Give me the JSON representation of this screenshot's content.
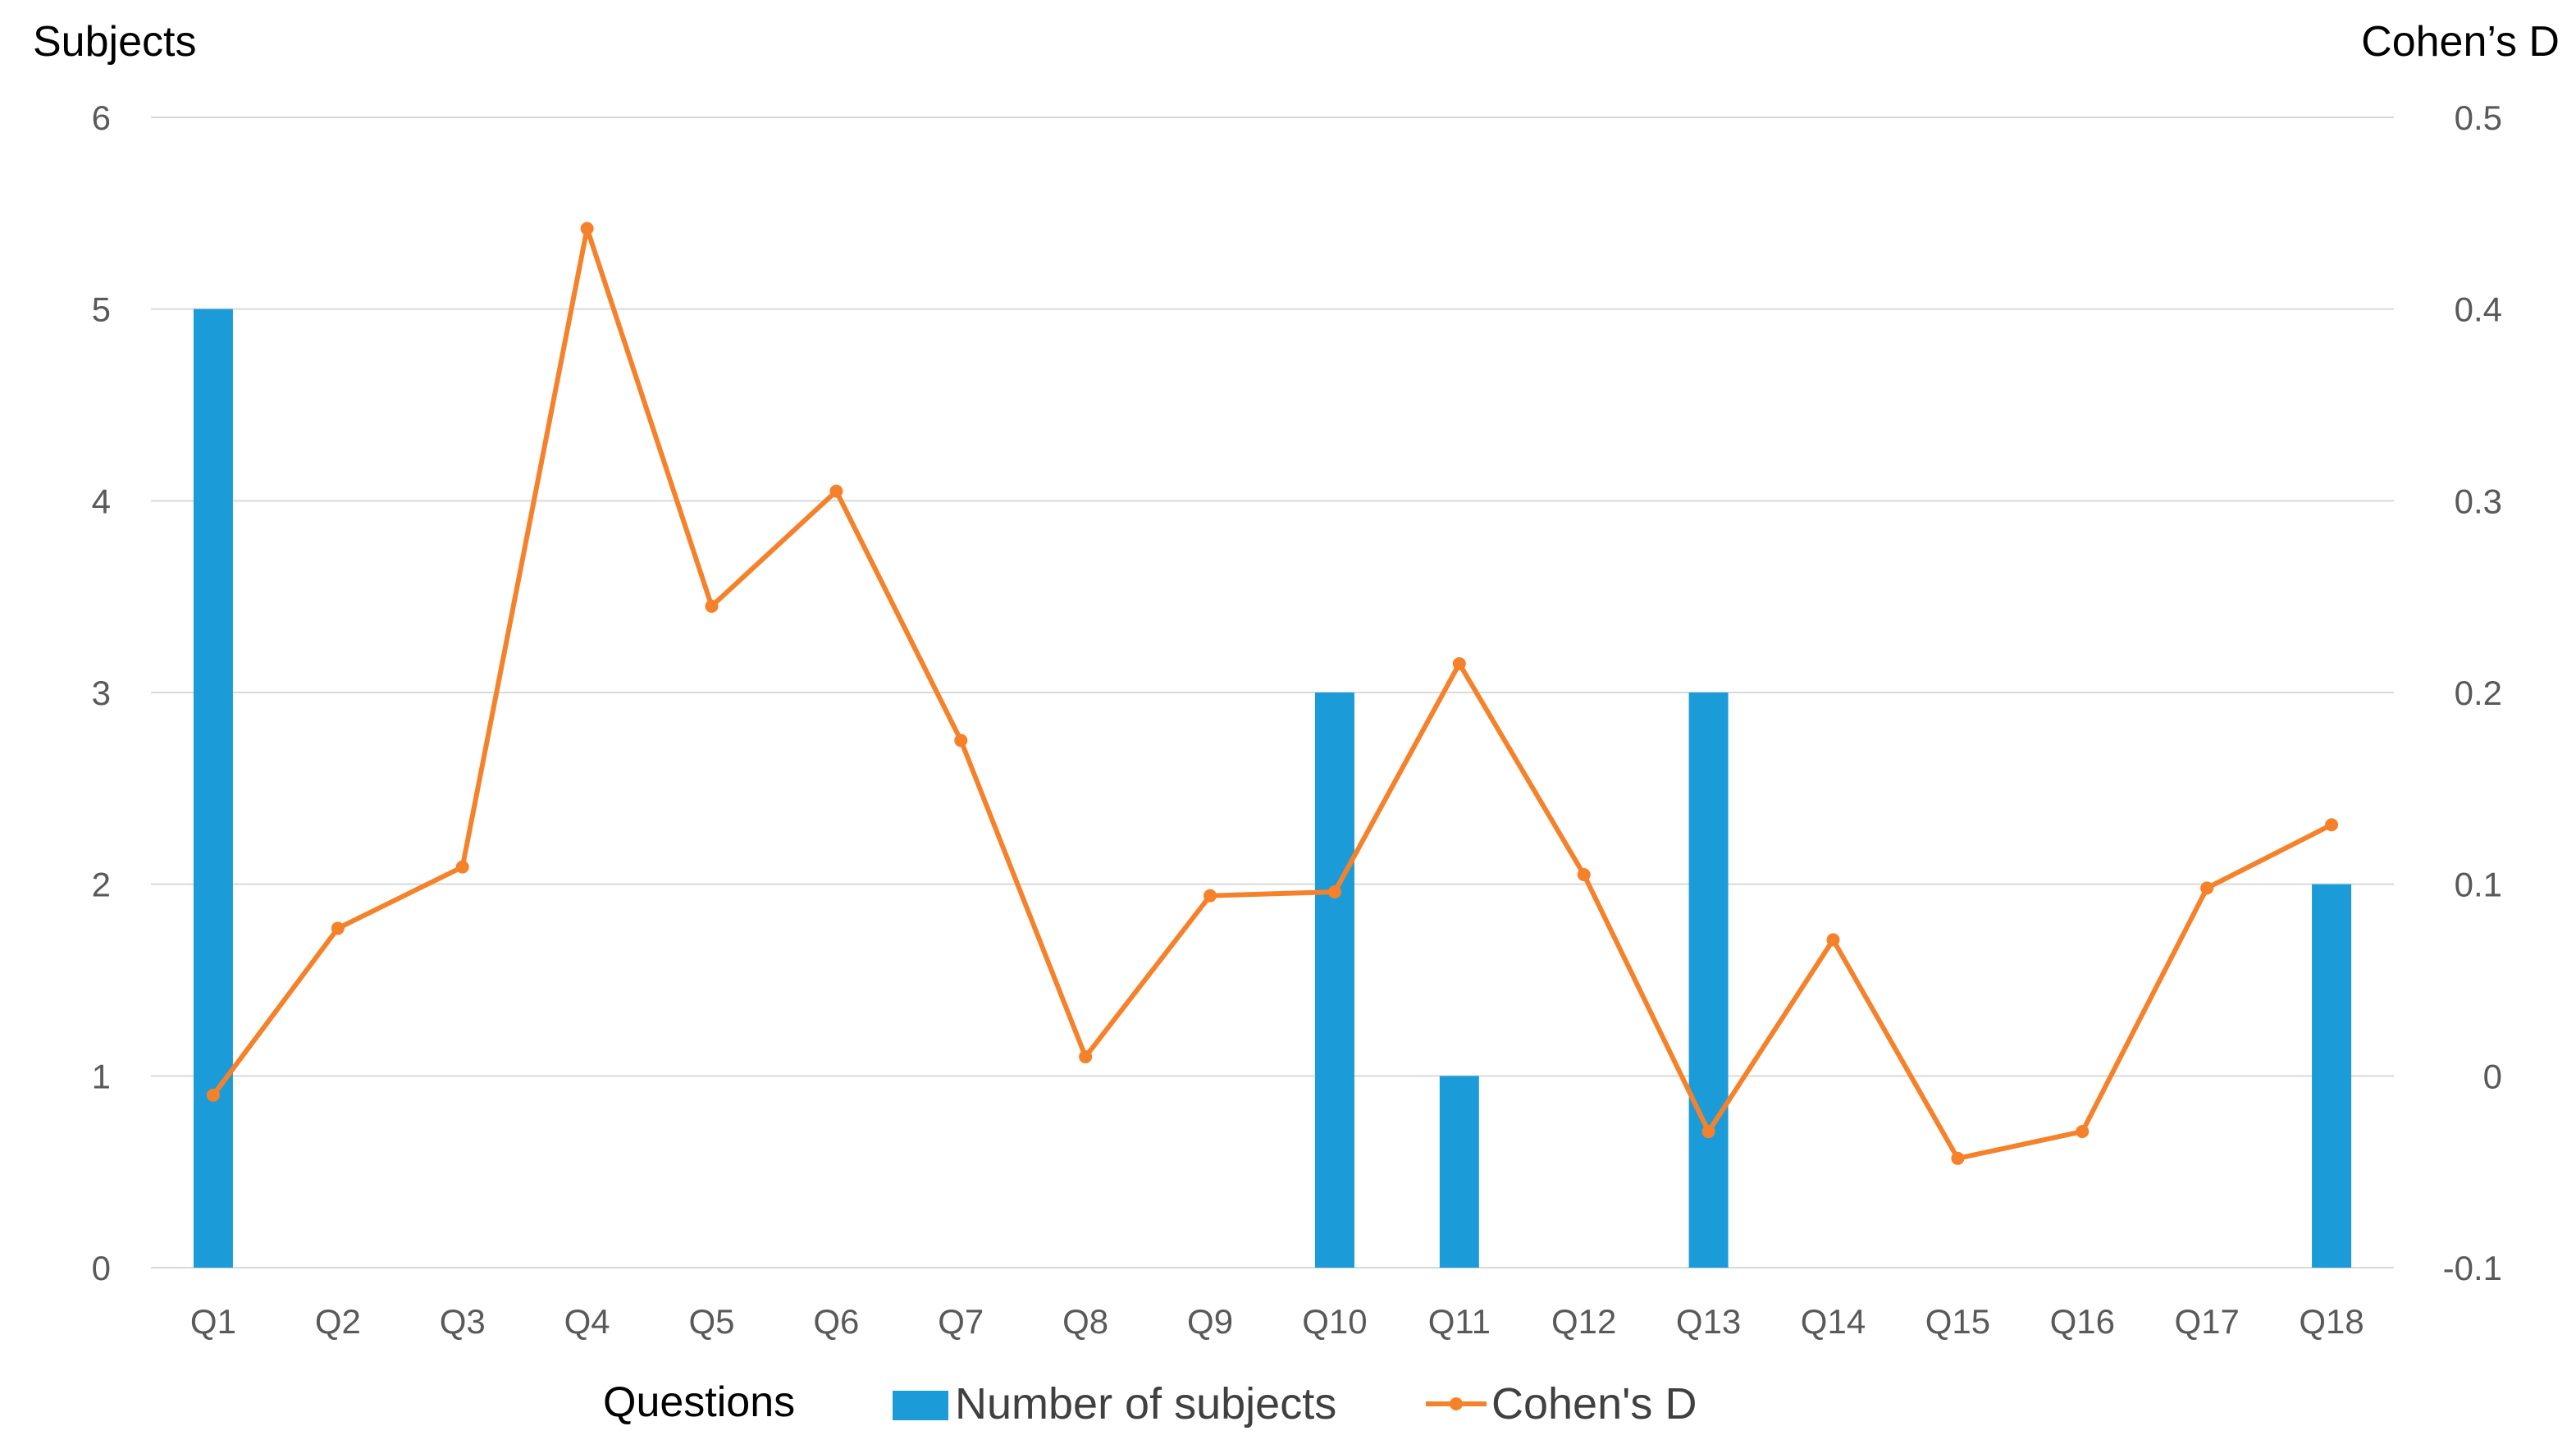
{
  "chart_data": {
    "type": "bar",
    "categories": [
      "Q1",
      "Q2",
      "Q3",
      "Q4",
      "Q5",
      "Q6",
      "Q7",
      "Q8",
      "Q9",
      "Q10",
      "Q11",
      "Q12",
      "Q13",
      "Q14",
      "Q15",
      "Q16",
      "Q17",
      "Q18"
    ],
    "series": [
      {
        "name": "Number of subjects",
        "type": "bar",
        "axis": "left",
        "color": "#1b9cd8",
        "values": [
          5,
          0,
          0,
          0,
          0,
          0,
          0,
          0,
          0,
          3,
          1,
          0,
          3,
          0,
          0,
          0,
          0,
          2
        ]
      },
      {
        "name": "Cohen's D",
        "type": "line",
        "axis": "right",
        "color": "#f5822a",
        "values": [
          -0.01,
          0.077,
          0.109,
          0.442,
          0.245,
          0.305,
          0.175,
          0.01,
          0.094,
          0.096,
          0.215,
          0.105,
          -0.029,
          0.071,
          -0.043,
          -0.029,
          0.098,
          0.131
        ]
      }
    ],
    "ylabel": "Subjects",
    "y2label": "Cohen’s D",
    "xlabel": "Questions",
    "ylim": [
      0,
      6
    ],
    "y2lim": [
      -0.1,
      0.5
    ],
    "yticks": [
      "0",
      "1",
      "2",
      "3",
      "4",
      "5",
      "6"
    ],
    "y2ticks": [
      "-0.1",
      "0",
      "0.1",
      "0.2",
      "0.3",
      "0.4",
      "0.5"
    ],
    "grid": true,
    "legend_position": "bottom"
  }
}
